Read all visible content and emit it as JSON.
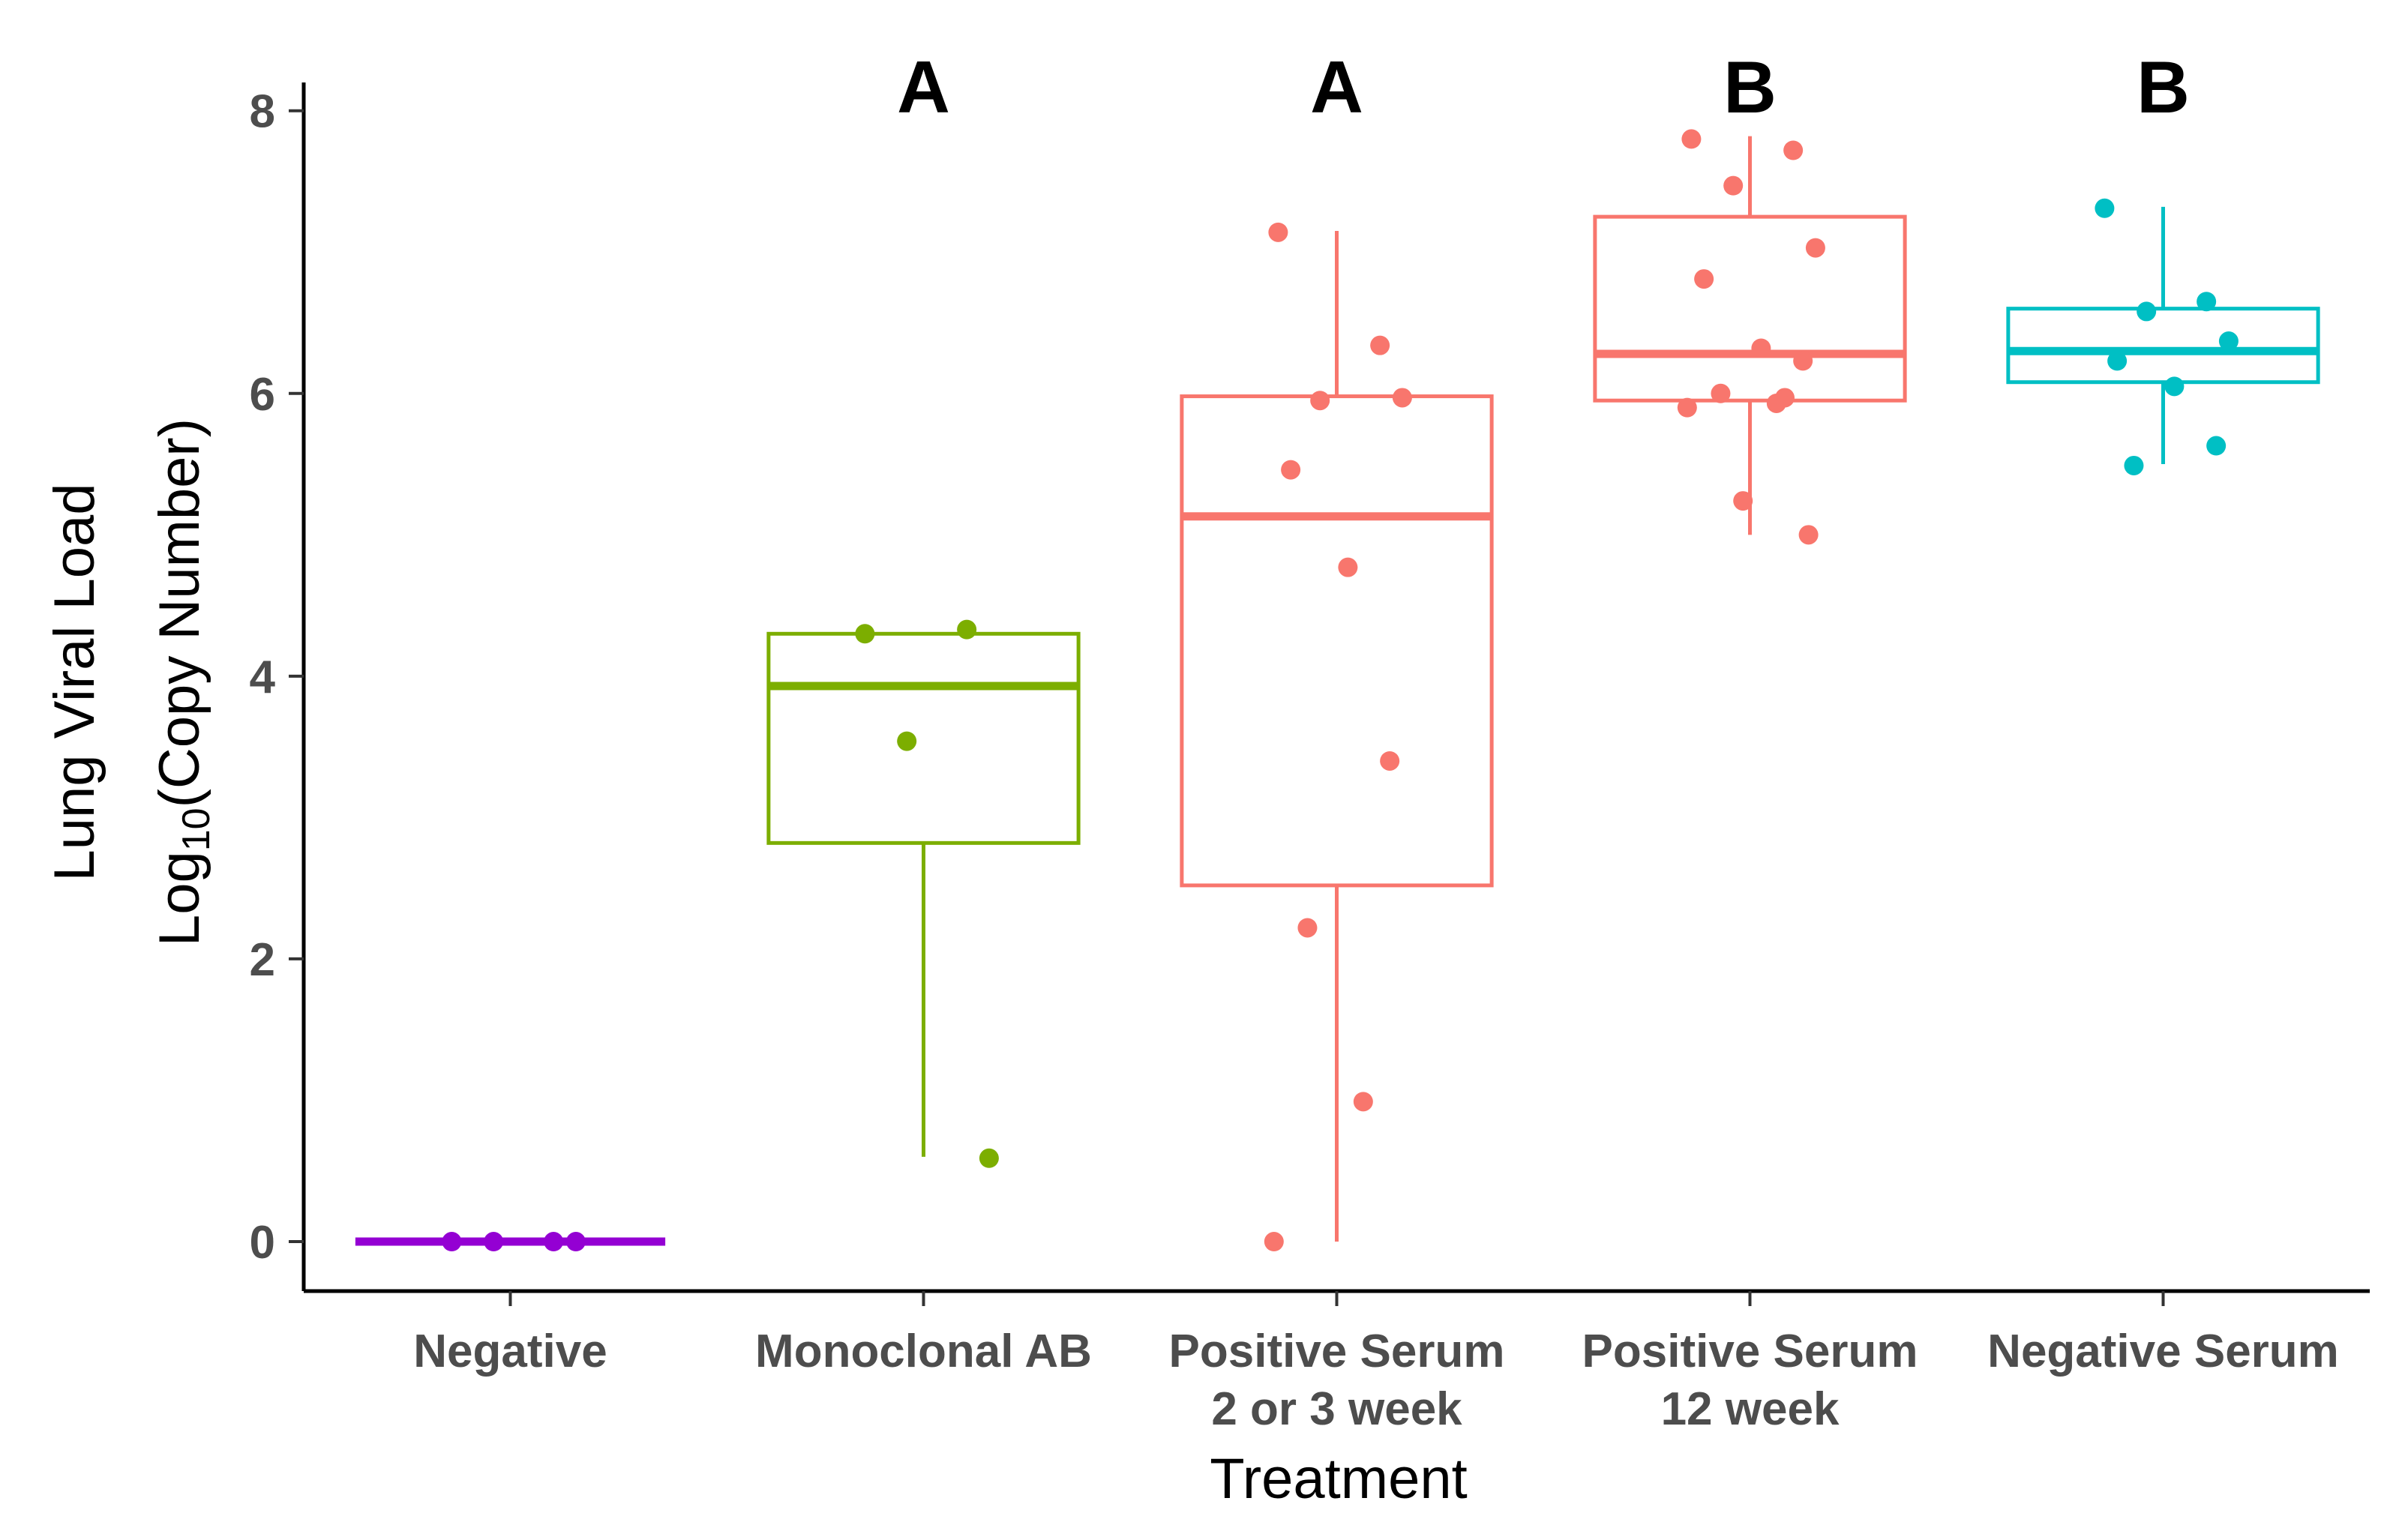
{
  "chart_data": {
    "type": "box",
    "xlabel": "Treatment",
    "ylabel_line1": "Lung Viral Load",
    "ylabel_line2": {
      "prefix": "Log",
      "subscript": "10",
      "suffix": "(Copy Number)"
    },
    "ylim": [
      -0.35,
      8.2
    ],
    "yticks": [
      0,
      2,
      4,
      6,
      8
    ],
    "grid": false,
    "legend": "none",
    "groups": [
      {
        "label_lines": [
          "Negative"
        ],
        "color": "#9400D3",
        "significance": "",
        "box": {
          "q1": 0,
          "median": 0,
          "q3": 0,
          "whisker_low": 0,
          "whisker_high": 0
        },
        "points": [
          0,
          0,
          0,
          0
        ]
      },
      {
        "label_lines": [
          "Monoclonal AB"
        ],
        "color": "#7CAE00",
        "significance": "A",
        "box": {
          "q1": 2.82,
          "median": 3.93,
          "q3": 4.3,
          "whisker_low": 0.6,
          "whisker_high": 4.3
        },
        "points": [
          4.3,
          4.33,
          3.54,
          0.59
        ]
      },
      {
        "label_lines": [
          "Positive Serum",
          "2 or 3 week"
        ],
        "color": "#F8766D",
        "significance": "A",
        "box": {
          "q1": 2.52,
          "median": 5.13,
          "q3": 5.98,
          "whisker_low": 0,
          "whisker_high": 7.15
        },
        "points": [
          7.14,
          6.34,
          5.95,
          5.97,
          5.46,
          4.77,
          3.4,
          2.22,
          0.99,
          0.0
        ]
      },
      {
        "label_lines": [
          "Positive Serum",
          "12 week"
        ],
        "color": "#F8766D",
        "significance": "B",
        "box": {
          "q1": 5.95,
          "median": 6.28,
          "q3": 7.25,
          "whisker_low": 5.0,
          "whisker_high": 7.82
        },
        "points": [
          7.8,
          7.72,
          7.47,
          7.03,
          6.81,
          6.32,
          6.23,
          6.0,
          5.93,
          5.9,
          5.97,
          5.24,
          5.0
        ]
      },
      {
        "label_lines": [
          "Negative Serum"
        ],
        "color": "#00BFC4",
        "significance": "B",
        "box": {
          "q1": 6.08,
          "median": 6.3,
          "q3": 6.6,
          "whisker_low": 5.5,
          "whisker_high": 7.32
        },
        "points": [
          7.31,
          6.65,
          6.58,
          6.37,
          6.23,
          6.05,
          5.63,
          5.49
        ]
      }
    ]
  }
}
